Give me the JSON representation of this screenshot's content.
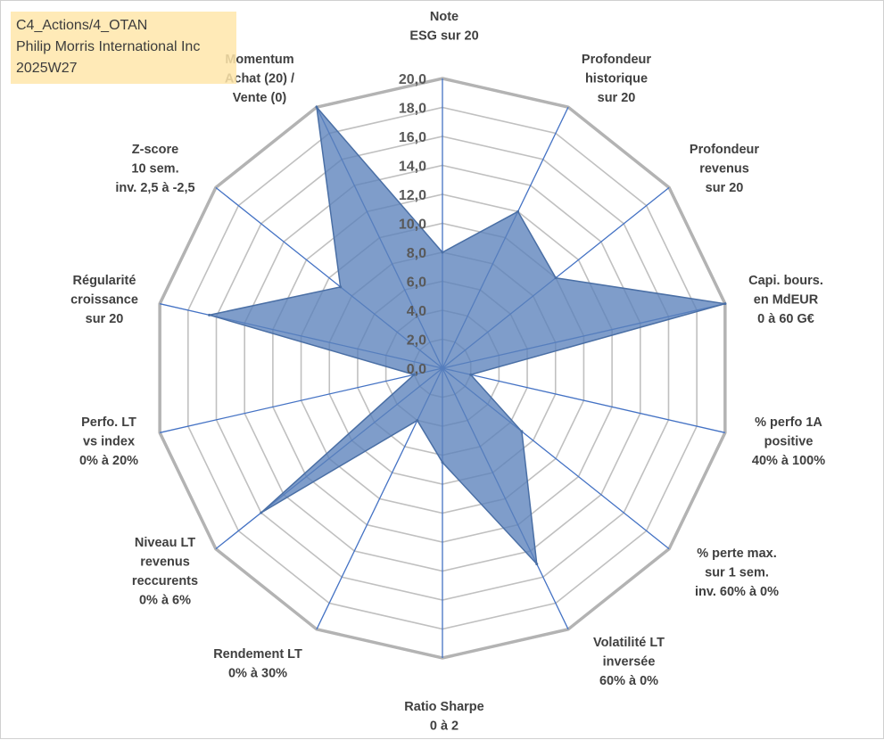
{
  "info_box": {
    "line1": "C4_Actions/4_OTAN",
    "line2": "Philip Morris International Inc",
    "line3": "2025W27"
  },
  "chart_data": {
    "type": "radar",
    "range": [
      0,
      20
    ],
    "ticks": [
      "0,0",
      "2,0",
      "4,0",
      "6,0",
      "8,0",
      "10,0",
      "12,0",
      "14,0",
      "16,0",
      "18,0",
      "20,0"
    ],
    "axes": [
      {
        "label": [
          "Note",
          "ESG sur 20"
        ],
        "value": 8.0
      },
      {
        "label": [
          "Profondeur",
          "historique",
          "sur 20"
        ],
        "value": 12.0
      },
      {
        "label": [
          "Profondeur",
          "revenus",
          "sur 20"
        ],
        "value": 10.0
      },
      {
        "label": [
          "Capi. bours.",
          "en MdEUR",
          "0 à 60 G€"
        ],
        "value": 20.0
      },
      {
        "label": [
          "% perfo 1A",
          "positive",
          "40% à 100%"
        ],
        "value": 2.0
      },
      {
        "label": [
          "% perte max.",
          "sur 1 sem.",
          "inv. 60% à 0%"
        ],
        "value": 7.0
      },
      {
        "label": [
          "Volatilité LT",
          "inversée",
          "60% à 0%"
        ],
        "value": 15.0
      },
      {
        "label": [
          "Ratio Sharpe",
          "0 à 2"
        ],
        "value": 6.5
      },
      {
        "label": [
          "Rendement LT",
          "0% à 30%"
        ],
        "value": 4.0
      },
      {
        "label": [
          "Niveau LT",
          "revenus",
          "reccurents",
          "0% à 6%"
        ],
        "value": 16.0
      },
      {
        "label": [
          "Perfo. LT",
          "vs index",
          "0% à 20%"
        ],
        "value": 2.0
      },
      {
        "label": [
          "Régularité",
          "croissance",
          "sur 20"
        ],
        "value": 16.5
      },
      {
        "label": [
          "Z-score",
          "10 sem.",
          "inv. 2,5 à -2,5"
        ],
        "value": 9.0
      },
      {
        "label": [
          "Momentum",
          "Achat (20) /",
          "Vente (0)"
        ],
        "value": 20.0
      }
    ],
    "colors": {
      "fill": "#5b82bb",
      "outline": "#4a6fa5",
      "spoke": "#4472c4",
      "grid": "#c0c0c0",
      "outer_grid": "#b3b3b3"
    }
  }
}
